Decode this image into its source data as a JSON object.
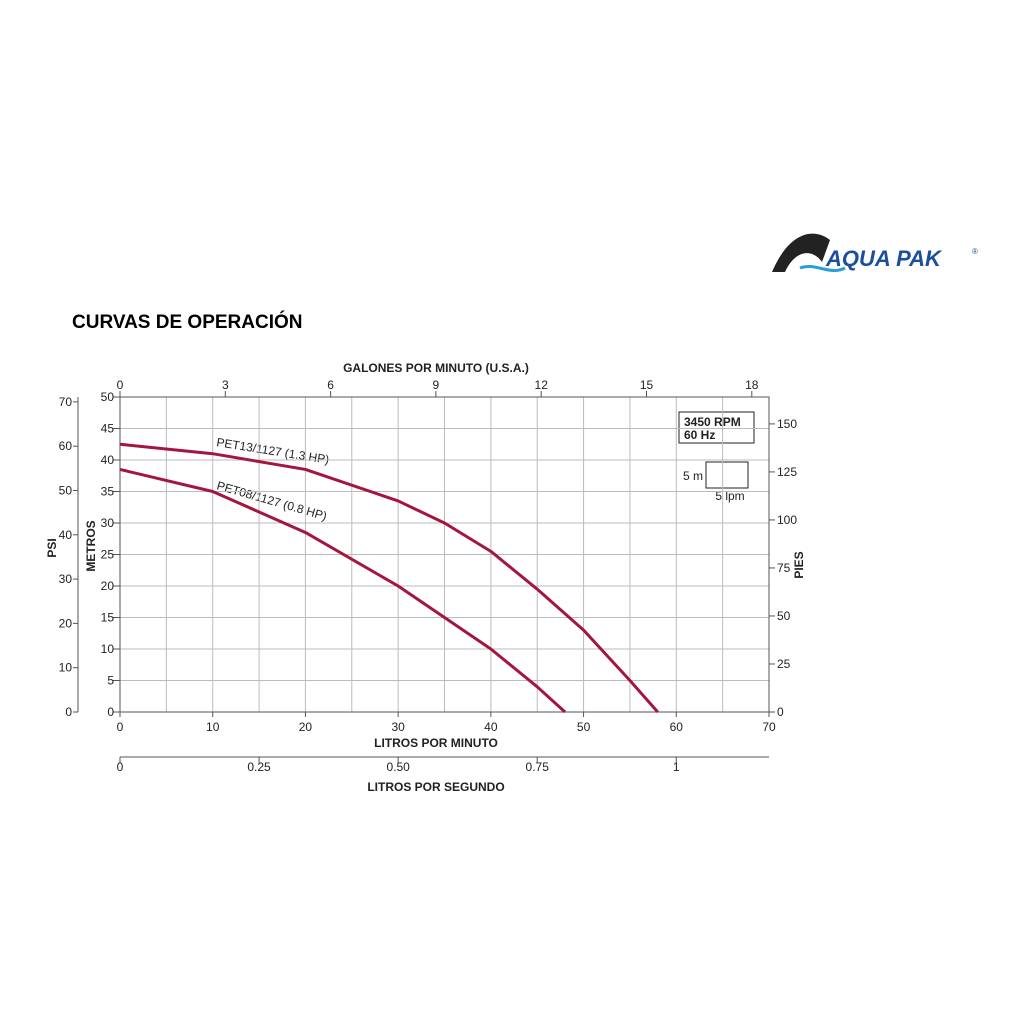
{
  "title": "CURVAS DE OPERACIÓN",
  "logo": {
    "text": "AQUA PAK",
    "mark": "®"
  },
  "chart_data": {
    "type": "line",
    "xlabel": "LITROS POR MINUTO",
    "xlim": [
      0,
      70
    ],
    "xticks": [
      0,
      10,
      20,
      30,
      40,
      50,
      60,
      70
    ],
    "x_minor_ticks": [
      5,
      15,
      25,
      35,
      45,
      55,
      65
    ],
    "ylabel": "METROS",
    "ylim": [
      0,
      50
    ],
    "yticks": [
      0,
      5,
      10,
      15,
      20,
      25,
      30,
      35,
      40,
      45,
      50
    ],
    "x2label": "GALONES POR MINUTO (U.S.A.)",
    "x2lim": [
      0,
      18.49
    ],
    "x2ticks": [
      0,
      3,
      6,
      9,
      12,
      15,
      18
    ],
    "x3label": "LITROS POR SEGUNDO",
    "x3lim": [
      0,
      1.1667
    ],
    "x3ticks": [
      0,
      0.25,
      {
        "value": 0.5,
        "label": "0.50"
      },
      0.75,
      1
    ],
    "y2label": "PSI",
    "y2lim": [
      0,
      71.1
    ],
    "y2ticks": [
      0,
      10,
      20,
      30,
      40,
      50,
      60,
      70
    ],
    "y3label": "PIES",
    "y3lim": [
      0,
      164
    ],
    "y3ticks": [
      0,
      25,
      50,
      75,
      100,
      125,
      150
    ],
    "grid": true,
    "legend": {
      "speed": "3450 RPM",
      "freq": "60 Hz",
      "scale_y": "5 m",
      "scale_x": "5 lpm"
    },
    "series": [
      {
        "name": "PET13/1127 (1.3 HP)",
        "color": "#a3163f",
        "x": [
          0,
          10,
          20,
          30,
          35,
          40,
          45,
          50,
          55,
          58
        ],
        "values": [
          42.5,
          41,
          38.5,
          33.5,
          30,
          25.5,
          19.5,
          13,
          5,
          0
        ]
      },
      {
        "name": "PET08/1127 (0.8 HP)",
        "color": "#a3163f",
        "x": [
          0,
          10,
          20,
          30,
          40,
          45,
          48
        ],
        "values": [
          38.5,
          35,
          28.5,
          20,
          10,
          4,
          0
        ]
      }
    ]
  }
}
